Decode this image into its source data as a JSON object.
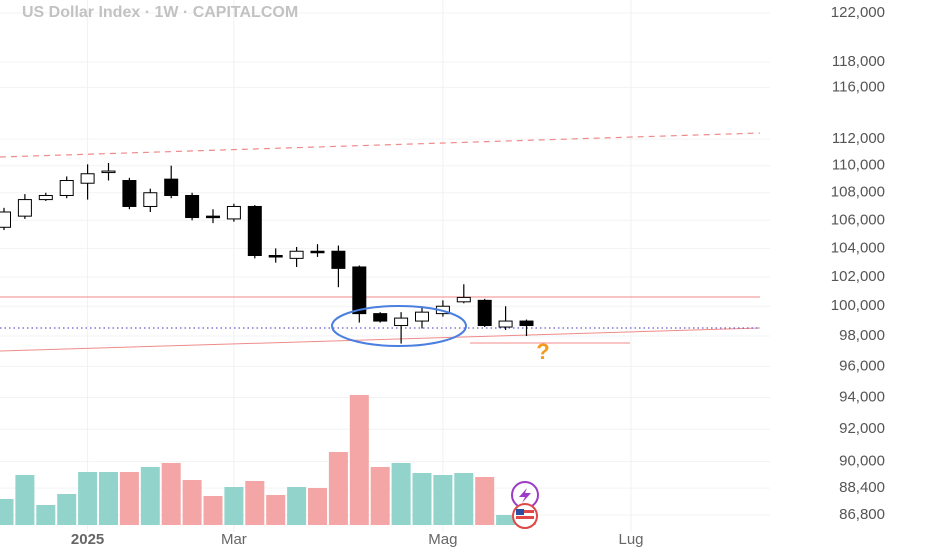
{
  "chart_data": {
    "type": "candlestick",
    "title": "US Dollar Index · 1W · CAPITALCOM",
    "categories": [
      null,
      null,
      null,
      null,
      "2025",
      null,
      null,
      null,
      null,
      null,
      null,
      "Mar",
      null,
      null,
      null,
      null,
      null,
      null,
      null,
      null,
      null,
      "Mag",
      null,
      null,
      null,
      null,
      null,
      null,
      null,
      null,
      "Lug"
    ],
    "open": [
      105500,
      106300,
      107500,
      107800,
      108700,
      109500,
      108900,
      107000,
      109000,
      107800,
      106300,
      106100,
      107000,
      103500,
      103300,
      103800,
      103800,
      102700,
      99500,
      98700,
      99000,
      99500,
      100300,
      100400,
      98600,
      99000,
      null,
      null,
      null,
      null,
      null
    ],
    "high": [
      106900,
      107900,
      108000,
      109200,
      110100,
      110200,
      109100,
      108300,
      110000,
      108000,
      106800,
      107200,
      107100,
      104000,
      104100,
      104300,
      104200,
      102800,
      99600,
      99600,
      100000,
      100400,
      101500,
      100500,
      100000,
      99100,
      null,
      null,
      null,
      null,
      null
    ],
    "low": [
      105300,
      106100,
      107400,
      107600,
      107500,
      108900,
      106800,
      106600,
      107600,
      106000,
      105800,
      105900,
      103300,
      103000,
      102700,
      103400,
      101300,
      98900,
      98900,
      97500,
      98500,
      99300,
      100200,
      98600,
      98400,
      98000,
      null,
      null,
      null,
      null,
      null
    ],
    "close": [
      106600,
      107500,
      107800,
      108900,
      109400,
      109600,
      107000,
      108000,
      107800,
      106200,
      106200,
      107000,
      103500,
      103400,
      103800,
      103700,
      102600,
      99500,
      99000,
      99200,
      99600,
      100000,
      100600,
      98700,
      99000,
      98700,
      null,
      null,
      null,
      null,
      null
    ],
    "volume": [
      26,
      50,
      20,
      31,
      53,
      53,
      53,
      58,
      62,
      45,
      29,
      38,
      44,
      30,
      38,
      37,
      73,
      130,
      58,
      62,
      52,
      50,
      52,
      48,
      10,
      4,
      null,
      null,
      null,
      null,
      null
    ],
    "up_color": "#ffffff",
    "down_color": "#000000",
    "volume_up_color": "#92d3cb",
    "volume_down_color": "#f4a5a5",
    "log_scale": true,
    "grid": true,
    "ylim": [
      86800,
      122000
    ],
    "yticks": [
      {
        "value": 86800,
        "label": "86,800"
      },
      {
        "value": 88400,
        "label": "88,400"
      },
      {
        "value": 90000,
        "label": "90,000"
      },
      {
        "value": 92000,
        "label": "92,000"
      },
      {
        "value": 94000,
        "label": "94,000"
      },
      {
        "value": 96000,
        "label": "96,000"
      },
      {
        "value": 98000,
        "label": "98,000"
      },
      {
        "value": 100000,
        "label": "100,000"
      },
      {
        "value": 102000,
        "label": "102,000"
      },
      {
        "value": 104000,
        "label": "104,000"
      },
      {
        "value": 106000,
        "label": "106,000"
      },
      {
        "value": 108000,
        "label": "108,000"
      },
      {
        "value": 110000,
        "label": "110,000"
      },
      {
        "value": 112000,
        "label": "112,000"
      },
      {
        "value": 116000,
        "label": "116,000"
      },
      {
        "value": 118000,
        "label": "118,000"
      },
      {
        "value": 122000,
        "label": "122,000"
      }
    ]
  }
}
